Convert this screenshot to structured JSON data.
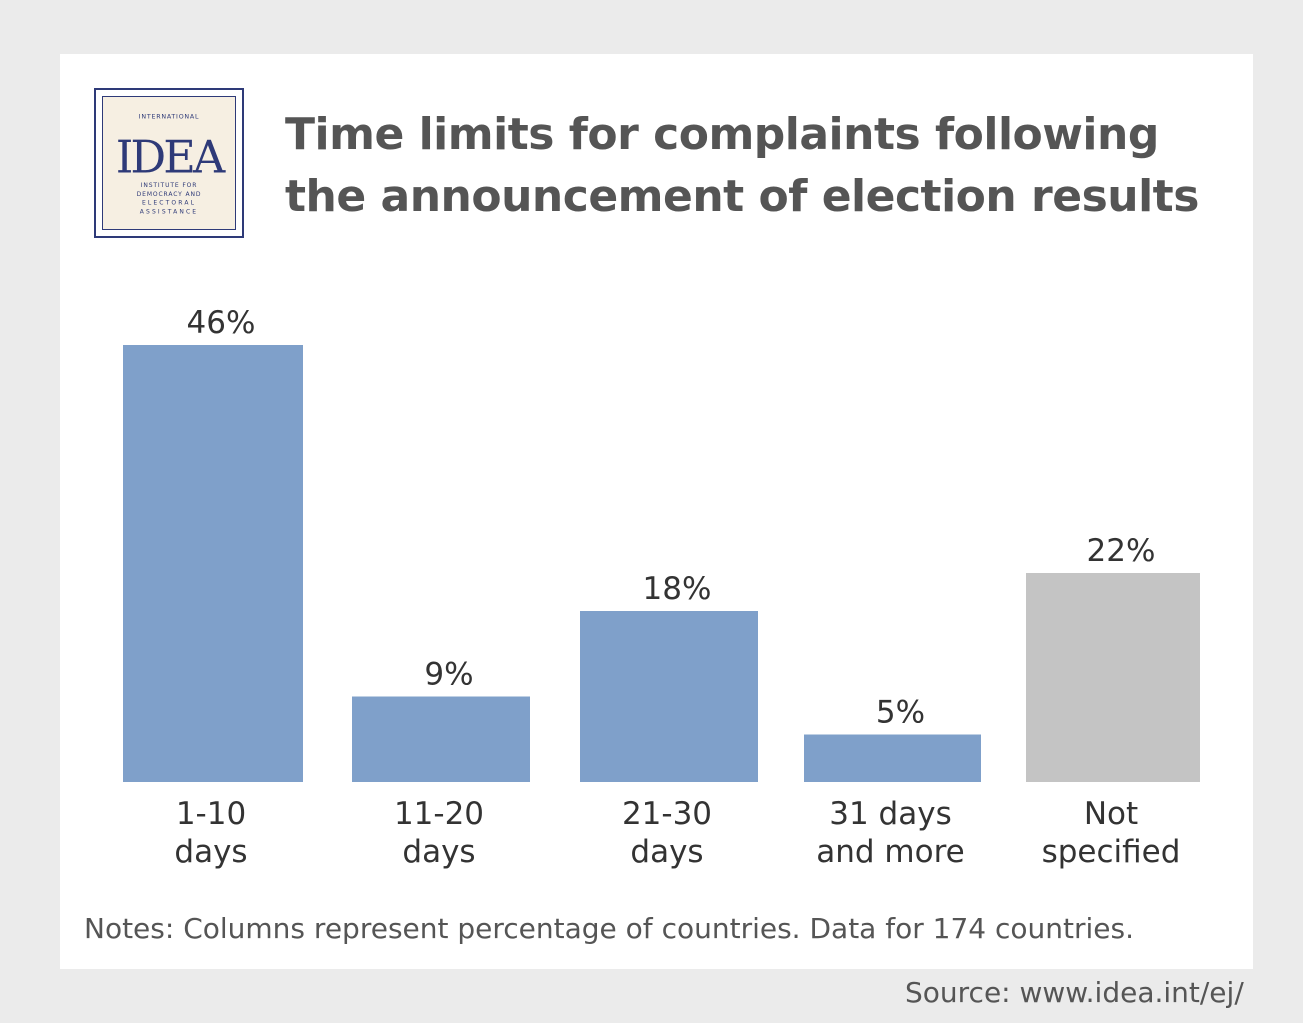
{
  "title_lines": [
    "Time limits for complaints following",
    "the announcement of election results"
  ],
  "logo": {
    "top_text": "INTERNATIONAL",
    "mark": "IDEA",
    "bottom_lines": [
      "INSTITUTE FOR",
      "DEMOCRACY AND",
      "ELECTORAL",
      "ASSISTANCE"
    ]
  },
  "colors": {
    "primary_bar": "#7fa0ca",
    "other_bar": "#c4c4c4",
    "text": "#333333",
    "muted_text": "#555555",
    "logo": "#2e3a78"
  },
  "chart_data": {
    "type": "bar",
    "title": "Time limits for complaints following the announcement of election results",
    "categories": [
      [
        "1-10",
        "days"
      ],
      [
        "11-20",
        "days"
      ],
      [
        "21-30",
        "days"
      ],
      [
        "31 days",
        "and more"
      ],
      [
        "Not",
        "specified"
      ]
    ],
    "values": [
      46,
      9,
      18,
      5,
      22
    ],
    "value_labels": [
      "46%",
      "9%",
      "18%",
      "5%",
      "22%"
    ],
    "bar_colors": [
      "#7fa0ca",
      "#7fa0ca",
      "#7fa0ca",
      "#7fa0ca",
      "#c4c4c4"
    ],
    "xlabel": "",
    "ylabel": "",
    "ylim": [
      0,
      46
    ],
    "grid": false,
    "legend": "none"
  },
  "notes": "Notes: Columns represent percentage of countries. Data for 174 countries.",
  "source": "Source: www.idea.int/ej/"
}
